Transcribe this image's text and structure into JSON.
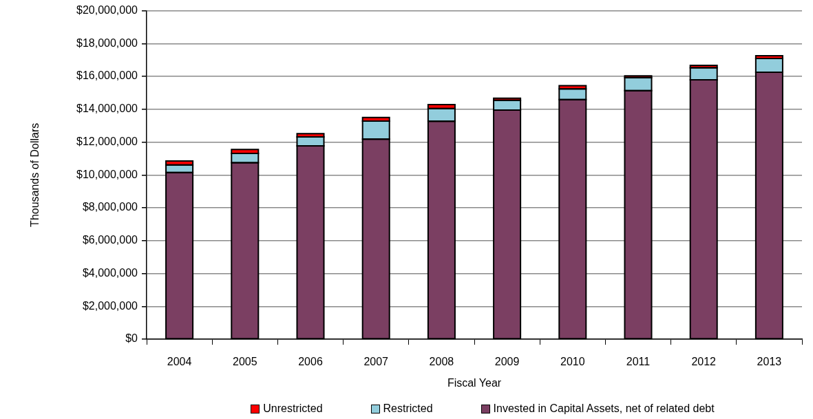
{
  "chart_data": {
    "type": "bar",
    "stacked": true,
    "xlabel": "Fiscal Year",
    "ylabel": "Thousands of Dollars",
    "categories": [
      "2004",
      "2005",
      "2006",
      "2007",
      "2008",
      "2009",
      "2010",
      "2011",
      "2012",
      "2013"
    ],
    "series": [
      {
        "name": "Invested in Capital Assets, net of related debt",
        "color": "#7b3f62",
        "values": [
          10150000,
          10750000,
          11770000,
          12180000,
          13270000,
          13950000,
          14590000,
          15130000,
          15790000,
          16250000
        ]
      },
      {
        "name": "Restricted",
        "color": "#92cddc",
        "values": [
          460000,
          560000,
          550000,
          1100000,
          770000,
          600000,
          650000,
          800000,
          740000,
          840000
        ]
      },
      {
        "name": "Unrestricted",
        "color": "#ff0000",
        "values": [
          240000,
          240000,
          200000,
          220000,
          250000,
          120000,
          200000,
          110000,
          140000,
          170000
        ]
      }
    ],
    "ylim": [
      0,
      20000000
    ],
    "yticks": [
      {
        "value": 0,
        "label": "$0"
      },
      {
        "value": 2000000,
        "label": "$2,000,000"
      },
      {
        "value": 4000000,
        "label": "$4,000,000"
      },
      {
        "value": 6000000,
        "label": "$6,000,000"
      },
      {
        "value": 8000000,
        "label": "$8,000,000"
      },
      {
        "value": 10000000,
        "label": "$10,000,000"
      },
      {
        "value": 12000000,
        "label": "$12,000,000"
      },
      {
        "value": 14000000,
        "label": "$14,000,000"
      },
      {
        "value": 16000000,
        "label": "$16,000,000"
      },
      {
        "value": 18000000,
        "label": "$18,000,000"
      },
      {
        "value": 20000000,
        "label": "$20,000,000"
      }
    ],
    "grid": "y",
    "legend": "bottom"
  }
}
